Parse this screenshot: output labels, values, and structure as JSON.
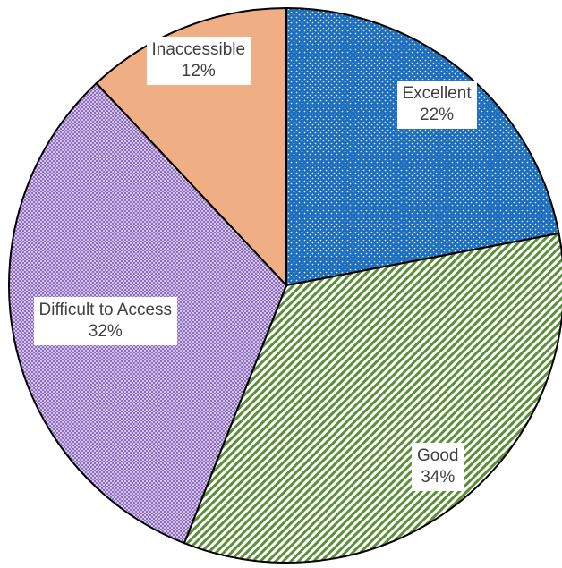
{
  "chart_data": {
    "type": "pie",
    "title": "",
    "slices": [
      {
        "name": "Excellent",
        "value": 22,
        "percent_label": "22%",
        "color": "#1f6fbf",
        "pattern": "dots"
      },
      {
        "name": "Good",
        "value": 34,
        "percent_label": "34%",
        "color": "#5c8f3a",
        "pattern": "diagonal-stripes"
      },
      {
        "name": "Difficult to Access",
        "value": 32,
        "percent_label": "32%",
        "color": "#8e6cc0",
        "pattern": "crosshatch"
      },
      {
        "name": "Inaccessible",
        "value": 12,
        "percent_label": "12%",
        "color": "#f0ae84",
        "pattern": "solid"
      }
    ],
    "start_angle": "12 o'clock",
    "direction": "clockwise",
    "legend": "none (data labels on slices)"
  }
}
